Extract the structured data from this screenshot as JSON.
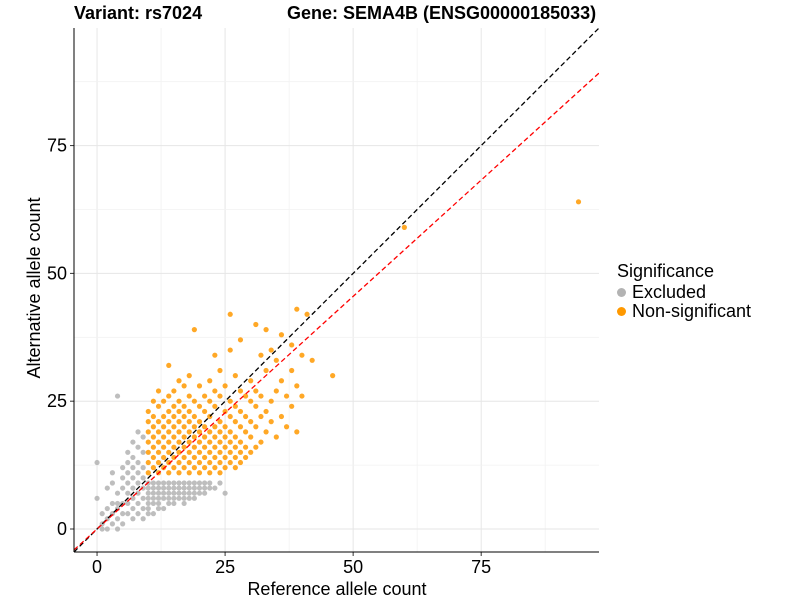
{
  "title": {
    "variant": "Variant: rs7024",
    "gene": "Gene: SEMA4B (ENSG00000185033)"
  },
  "chart_data": {
    "type": "scatter",
    "xlabel": "Reference allele count",
    "ylabel": "Alternative allele count",
    "xlim": [
      -4.5,
      98
    ],
    "ylim": [
      -4.5,
      98
    ],
    "xticks": [
      0,
      25,
      50,
      75
    ],
    "yticks": [
      0,
      25,
      50,
      75
    ],
    "grid": true,
    "legend": {
      "title": "Significance",
      "position": "right",
      "entries": [
        {
          "label": "Excluded",
          "color": "#b3b3b3"
        },
        {
          "label": "Non-significant",
          "color": "#ff9900"
        }
      ]
    },
    "reference_lines": [
      {
        "name": "identity",
        "intercept": 0,
        "slope": 1,
        "color": "#000000",
        "style": "dashed"
      },
      {
        "name": "fitted",
        "intercept": 0,
        "slope": 0.91,
        "color": "#ff0000",
        "style": "dashed"
      }
    ],
    "series": [
      {
        "name": "Excluded",
        "color": "#b3b3b3",
        "points": [
          [
            0,
            13
          ],
          [
            0,
            6
          ],
          [
            1,
            3
          ],
          [
            1,
            1
          ],
          [
            1,
            0
          ],
          [
            2,
            4
          ],
          [
            2,
            2
          ],
          [
            2,
            0
          ],
          [
            2,
            8
          ],
          [
            3,
            9
          ],
          [
            3,
            5
          ],
          [
            3,
            3
          ],
          [
            3,
            1
          ],
          [
            3,
            11
          ],
          [
            4,
            26
          ],
          [
            4,
            7
          ],
          [
            4,
            5
          ],
          [
            4,
            4
          ],
          [
            4,
            2
          ],
          [
            4,
            0
          ],
          [
            5,
            12
          ],
          [
            5,
            10
          ],
          [
            5,
            8
          ],
          [
            5,
            5
          ],
          [
            5,
            3
          ],
          [
            5,
            1
          ],
          [
            6,
            15
          ],
          [
            6,
            13
          ],
          [
            6,
            11
          ],
          [
            6,
            9
          ],
          [
            6,
            7
          ],
          [
            6,
            5
          ],
          [
            6,
            3
          ],
          [
            7,
            17
          ],
          [
            7,
            14
          ],
          [
            7,
            12
          ],
          [
            7,
            10
          ],
          [
            7,
            8
          ],
          [
            7,
            6
          ],
          [
            7,
            4
          ],
          [
            7,
            2
          ],
          [
            8,
            19
          ],
          [
            8,
            16
          ],
          [
            8,
            13
          ],
          [
            8,
            11
          ],
          [
            8,
            9
          ],
          [
            8,
            7
          ],
          [
            8,
            5
          ],
          [
            8,
            3
          ],
          [
            9,
            18
          ],
          [
            9,
            15
          ],
          [
            9,
            12
          ],
          [
            9,
            10
          ],
          [
            9,
            8
          ],
          [
            9,
            6
          ],
          [
            9,
            4
          ],
          [
            9,
            2
          ],
          [
            10,
            9
          ],
          [
            10,
            8
          ],
          [
            10,
            7
          ],
          [
            10,
            6
          ],
          [
            10,
            5
          ],
          [
            10,
            4
          ],
          [
            10,
            3
          ],
          [
            11,
            9
          ],
          [
            11,
            8
          ],
          [
            11,
            7
          ],
          [
            11,
            6
          ],
          [
            11,
            5
          ],
          [
            11,
            3
          ],
          [
            12,
            9
          ],
          [
            12,
            8
          ],
          [
            12,
            7
          ],
          [
            12,
            6
          ],
          [
            12,
            5
          ],
          [
            12,
            4
          ],
          [
            13,
            9
          ],
          [
            13,
            8
          ],
          [
            13,
            7
          ],
          [
            13,
            6
          ],
          [
            13,
            4
          ],
          [
            14,
            9
          ],
          [
            14,
            8
          ],
          [
            14,
            7
          ],
          [
            14,
            6
          ],
          [
            14,
            5
          ],
          [
            15,
            9
          ],
          [
            15,
            8
          ],
          [
            15,
            7
          ],
          [
            15,
            6
          ],
          [
            15,
            5
          ],
          [
            16,
            9
          ],
          [
            16,
            8
          ],
          [
            16,
            7
          ],
          [
            16,
            6
          ],
          [
            17,
            9
          ],
          [
            17,
            8
          ],
          [
            17,
            7
          ],
          [
            17,
            6
          ],
          [
            17,
            5
          ],
          [
            18,
            9
          ],
          [
            18,
            8
          ],
          [
            18,
            7
          ],
          [
            18,
            6
          ],
          [
            19,
            9
          ],
          [
            19,
            8
          ],
          [
            19,
            7
          ],
          [
            19,
            6
          ],
          [
            20,
            9
          ],
          [
            20,
            8
          ],
          [
            20,
            7
          ],
          [
            21,
            9
          ],
          [
            21,
            8
          ],
          [
            21,
            7
          ],
          [
            22,
            9
          ],
          [
            22,
            8
          ],
          [
            23,
            8
          ],
          [
            24,
            9
          ],
          [
            25,
            7
          ]
        ]
      },
      {
        "name": "Non-significant",
        "color": "#ff9900",
        "points": [
          [
            10,
            11
          ],
          [
            10,
            13
          ],
          [
            10,
            15
          ],
          [
            10,
            17
          ],
          [
            10,
            19
          ],
          [
            10,
            21
          ],
          [
            10,
            23
          ],
          [
            11,
            12
          ],
          [
            11,
            14
          ],
          [
            11,
            16
          ],
          [
            11,
            18
          ],
          [
            11,
            20
          ],
          [
            11,
            22
          ],
          [
            11,
            25
          ],
          [
            12,
            11
          ],
          [
            12,
            13
          ],
          [
            12,
            15
          ],
          [
            12,
            17
          ],
          [
            12,
            19
          ],
          [
            12,
            21
          ],
          [
            12,
            24
          ],
          [
            12,
            27
          ],
          [
            13,
            12
          ],
          [
            13,
            14
          ],
          [
            13,
            16
          ],
          [
            13,
            18
          ],
          [
            13,
            20
          ],
          [
            13,
            22
          ],
          [
            13,
            25
          ],
          [
            14,
            11
          ],
          [
            14,
            13
          ],
          [
            14,
            15
          ],
          [
            14,
            17
          ],
          [
            14,
            19
          ],
          [
            14,
            21
          ],
          [
            14,
            23
          ],
          [
            14,
            26
          ],
          [
            14,
            32
          ],
          [
            15,
            12
          ],
          [
            15,
            14
          ],
          [
            15,
            16
          ],
          [
            15,
            18
          ],
          [
            15,
            20
          ],
          [
            15,
            22
          ],
          [
            15,
            24
          ],
          [
            15,
            27
          ],
          [
            16,
            11
          ],
          [
            16,
            13
          ],
          [
            16,
            15
          ],
          [
            16,
            17
          ],
          [
            16,
            19
          ],
          [
            16,
            21
          ],
          [
            16,
            23
          ],
          [
            16,
            25
          ],
          [
            16,
            29
          ],
          [
            17,
            12
          ],
          [
            17,
            14
          ],
          [
            17,
            16
          ],
          [
            17,
            18
          ],
          [
            17,
            20
          ],
          [
            17,
            22
          ],
          [
            17,
            24
          ],
          [
            17,
            28
          ],
          [
            18,
            11
          ],
          [
            18,
            13
          ],
          [
            18,
            15
          ],
          [
            18,
            17
          ],
          [
            18,
            19
          ],
          [
            18,
            21
          ],
          [
            18,
            23
          ],
          [
            18,
            26
          ],
          [
            18,
            30
          ],
          [
            19,
            12
          ],
          [
            19,
            14
          ],
          [
            19,
            16
          ],
          [
            19,
            18
          ],
          [
            19,
            20
          ],
          [
            19,
            22
          ],
          [
            19,
            25
          ],
          [
            19,
            39
          ],
          [
            20,
            11
          ],
          [
            20,
            13
          ],
          [
            20,
            15
          ],
          [
            20,
            17
          ],
          [
            20,
            19
          ],
          [
            20,
            21
          ],
          [
            20,
            24
          ],
          [
            20,
            28
          ],
          [
            21,
            12
          ],
          [
            21,
            14
          ],
          [
            21,
            16
          ],
          [
            21,
            18
          ],
          [
            21,
            20
          ],
          [
            21,
            23
          ],
          [
            21,
            26
          ],
          [
            22,
            11
          ],
          [
            22,
            13
          ],
          [
            22,
            15
          ],
          [
            22,
            17
          ],
          [
            22,
            19
          ],
          [
            22,
            22
          ],
          [
            22,
            25
          ],
          [
            22,
            29
          ],
          [
            23,
            12
          ],
          [
            23,
            14
          ],
          [
            23,
            16
          ],
          [
            23,
            18
          ],
          [
            23,
            20
          ],
          [
            23,
            24
          ],
          [
            23,
            27
          ],
          [
            23,
            34
          ],
          [
            24,
            11
          ],
          [
            24,
            13
          ],
          [
            24,
            15
          ],
          [
            24,
            17
          ],
          [
            24,
            19
          ],
          [
            24,
            21
          ],
          [
            24,
            26
          ],
          [
            24,
            31
          ],
          [
            25,
            12
          ],
          [
            25,
            14
          ],
          [
            25,
            16
          ],
          [
            25,
            18
          ],
          [
            25,
            20
          ],
          [
            25,
            23
          ],
          [
            25,
            28
          ],
          [
            26,
            13
          ],
          [
            26,
            15
          ],
          [
            26,
            17
          ],
          [
            26,
            19
          ],
          [
            26,
            22
          ],
          [
            26,
            25
          ],
          [
            26,
            35
          ],
          [
            26,
            42
          ],
          [
            27,
            12
          ],
          [
            27,
            14
          ],
          [
            27,
            16
          ],
          [
            27,
            18
          ],
          [
            27,
            21
          ],
          [
            27,
            24
          ],
          [
            27,
            30
          ],
          [
            28,
            13
          ],
          [
            28,
            15
          ],
          [
            28,
            17
          ],
          [
            28,
            20
          ],
          [
            28,
            23
          ],
          [
            28,
            27
          ],
          [
            28,
            37
          ],
          [
            29,
            14
          ],
          [
            29,
            16
          ],
          [
            29,
            19
          ],
          [
            29,
            22
          ],
          [
            29,
            26
          ],
          [
            30,
            15
          ],
          [
            30,
            18
          ],
          [
            30,
            21
          ],
          [
            30,
            25
          ],
          [
            30,
            29
          ],
          [
            31,
            16
          ],
          [
            31,
            20
          ],
          [
            31,
            24
          ],
          [
            31,
            27
          ],
          [
            31,
            40
          ],
          [
            32,
            17
          ],
          [
            32,
            22
          ],
          [
            32,
            26
          ],
          [
            32,
            34
          ],
          [
            33,
            19
          ],
          [
            33,
            23
          ],
          [
            33,
            31
          ],
          [
            33,
            39
          ],
          [
            34,
            21
          ],
          [
            34,
            25
          ],
          [
            34,
            35
          ],
          [
            35,
            18
          ],
          [
            35,
            27
          ],
          [
            35,
            33
          ],
          [
            36,
            22
          ],
          [
            36,
            29
          ],
          [
            36,
            38
          ],
          [
            37,
            20
          ],
          [
            37,
            26
          ],
          [
            38,
            24
          ],
          [
            38,
            31
          ],
          [
            38,
            36
          ],
          [
            39,
            19
          ],
          [
            39,
            28
          ],
          [
            39,
            43
          ],
          [
            40,
            26
          ],
          [
            40,
            34
          ],
          [
            41,
            42
          ],
          [
            42,
            33
          ],
          [
            46,
            30
          ],
          [
            60,
            59
          ],
          [
            94,
            64
          ]
        ]
      }
    ]
  }
}
